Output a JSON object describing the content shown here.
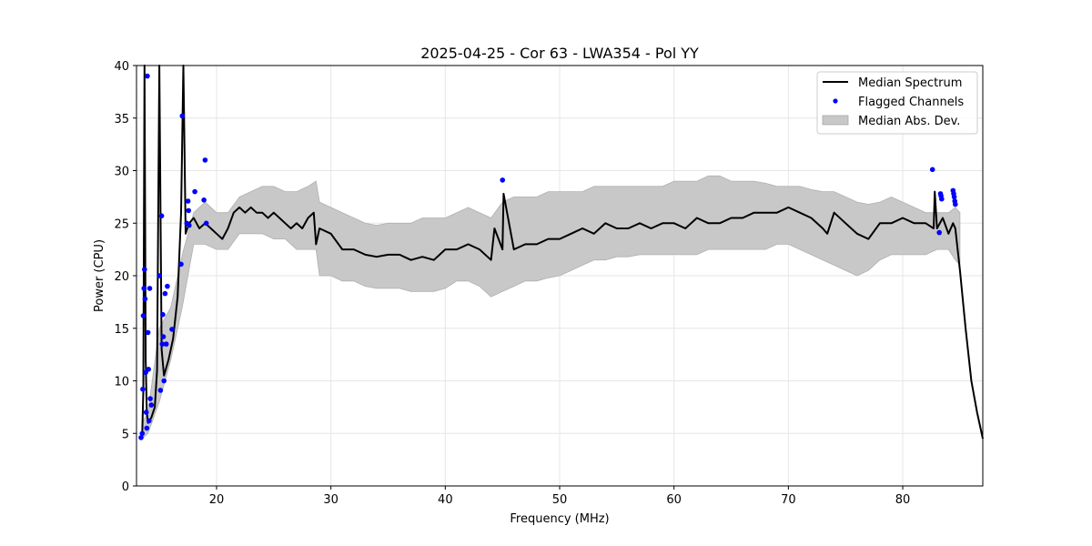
{
  "chart_data": {
    "type": "line",
    "title": "2025-04-25 - Cor 63 - LWA354 - Pol YY",
    "xlabel": "Frequency (MHz)",
    "ylabel": "Power (CPU)",
    "xlim": [
      13,
      87
    ],
    "ylim": [
      0,
      40
    ],
    "xticks": [
      20,
      30,
      40,
      50,
      60,
      70,
      80
    ],
    "yticks": [
      0,
      5,
      10,
      15,
      20,
      25,
      30,
      35,
      40
    ],
    "grid": true,
    "legend_position": "top-right",
    "legend": [
      {
        "label": "Median Spectrum",
        "kind": "line",
        "color": "#000000"
      },
      {
        "label": "Flagged Channels",
        "kind": "marker",
        "color": "#0000ff"
      },
      {
        "label": "Median Abs. Dev.",
        "kind": "patch",
        "color": "#c8c8c8"
      }
    ],
    "series": [
      {
        "name": "Median Spectrum",
        "color": "#000000",
        "x": [
          13.5,
          13.6,
          13.7,
          13.8,
          13.9,
          14.0,
          14.3,
          14.6,
          14.8,
          15.0,
          15.2,
          15.4,
          15.8,
          16.2,
          16.6,
          16.9,
          17.1,
          17.3,
          17.6,
          18.0,
          18.5,
          19.0,
          19.5,
          20.0,
          20.5,
          21.0,
          21.5,
          22.0,
          22.5,
          23.0,
          23.5,
          24.0,
          24.5,
          25.0,
          25.5,
          26.0,
          26.5,
          27.0,
          27.5,
          28.0,
          28.5,
          28.7,
          29.0,
          30.0,
          31.0,
          32.0,
          33.0,
          34.0,
          35.0,
          36.0,
          37.0,
          38.0,
          39.0,
          40.0,
          41.0,
          42.0,
          43.0,
          44.0,
          44.3,
          45.0,
          45.1,
          46.0,
          47.0,
          48.0,
          49.0,
          50.0,
          51.0,
          52.0,
          53.0,
          54.0,
          55.0,
          56.0,
          57.0,
          58.0,
          59.0,
          60.0,
          61.0,
          62.0,
          63.0,
          64.0,
          65.0,
          66.0,
          67.0,
          68.0,
          69.0,
          70.0,
          71.0,
          72.0,
          73.0,
          73.4,
          74.0,
          75.0,
          76.0,
          77.0,
          78.0,
          79.0,
          80.0,
          81.0,
          82.0,
          82.7,
          82.8,
          83.0,
          83.5,
          84.0,
          84.4,
          84.6,
          85.0,
          85.5,
          86.0,
          86.5,
          87.0
        ],
        "y": [
          5.0,
          9.0,
          40.0,
          12.0,
          7.0,
          6.0,
          6.5,
          7.5,
          11.0,
          40.0,
          13.0,
          10.5,
          12.0,
          14.0,
          18.0,
          26.0,
          40.0,
          24.0,
          25.0,
          25.5,
          24.5,
          25.0,
          24.5,
          24.0,
          23.5,
          24.5,
          26.0,
          26.5,
          26.0,
          26.5,
          26.0,
          26.0,
          25.5,
          26.0,
          25.5,
          25.0,
          24.5,
          25.0,
          24.5,
          25.5,
          26.0,
          23.0,
          24.5,
          24.0,
          22.5,
          22.5,
          22.0,
          21.8,
          22.0,
          22.0,
          21.5,
          21.8,
          21.5,
          22.5,
          22.5,
          23.0,
          22.5,
          21.5,
          24.5,
          22.5,
          27.8,
          22.5,
          23.0,
          23.0,
          23.5,
          23.5,
          24.0,
          24.5,
          24.0,
          25.0,
          24.5,
          24.5,
          25.0,
          24.5,
          25.0,
          25.0,
          24.5,
          25.5,
          25.0,
          25.0,
          25.5,
          25.5,
          26.0,
          26.0,
          26.0,
          26.5,
          26.0,
          25.5,
          24.5,
          24.0,
          26.0,
          25.0,
          24.0,
          23.5,
          25.0,
          25.0,
          25.5,
          25.0,
          25.0,
          24.5,
          28.0,
          24.5,
          25.5,
          24.0,
          25.0,
          24.5,
          20.5,
          15.0,
          10.0,
          7.0,
          4.5
        ]
      },
      {
        "name": "Median Abs. Dev.",
        "color": "#c8c8c8",
        "x": [
          13.5,
          14.0,
          15.0,
          16.0,
          17.0,
          18.0,
          19.0,
          20.0,
          21.0,
          22.0,
          23.0,
          24.0,
          25.0,
          26.0,
          27.0,
          28.0,
          28.7,
          29.0,
          30.0,
          31.0,
          32.0,
          33.0,
          34.0,
          35.0,
          36.0,
          37.0,
          38.0,
          39.0,
          40.0,
          41.0,
          42.0,
          43.0,
          44.0,
          45.0,
          46.0,
          47.0,
          48.0,
          49.0,
          50.0,
          51.0,
          52.0,
          53.0,
          54.0,
          55.0,
          56.0,
          57.0,
          58.0,
          59.0,
          60.0,
          61.0,
          62.0,
          63.0,
          64.0,
          65.0,
          66.0,
          67.0,
          68.0,
          69.0,
          70.0,
          71.0,
          72.0,
          73.0,
          74.0,
          75.0,
          76.0,
          77.0,
          78.0,
          79.0,
          80.0,
          81.0,
          82.0,
          83.0,
          84.0,
          84.6,
          85.0
        ],
        "upper": [
          6.0,
          7.0,
          15.0,
          17.0,
          22.0,
          26.0,
          27.0,
          26.0,
          26.0,
          27.5,
          28.0,
          28.5,
          28.5,
          28.0,
          28.0,
          28.5,
          29.0,
          27.0,
          26.5,
          26.0,
          25.5,
          25.0,
          24.8,
          25.0,
          25.0,
          25.0,
          25.5,
          25.5,
          25.5,
          26.0,
          26.5,
          26.0,
          25.5,
          27.0,
          27.5,
          27.5,
          27.5,
          28.0,
          28.0,
          28.0,
          28.0,
          28.5,
          28.5,
          28.5,
          28.5,
          28.5,
          28.5,
          28.5,
          29.0,
          29.0,
          29.0,
          29.5,
          29.5,
          29.0,
          29.0,
          29.0,
          28.8,
          28.5,
          28.5,
          28.5,
          28.2,
          28.0,
          28.0,
          27.5,
          27.0,
          26.8,
          27.0,
          27.5,
          27.0,
          26.5,
          26.0,
          26.0,
          26.0,
          26.5,
          26.0
        ],
        "lower": [
          4.5,
          5.0,
          8.0,
          12.0,
          17.0,
          23.0,
          23.0,
          22.5,
          22.5,
          24.0,
          24.0,
          24.0,
          23.5,
          23.5,
          22.5,
          22.5,
          22.5,
          20.0,
          20.0,
          19.5,
          19.5,
          19.0,
          18.8,
          18.8,
          18.8,
          18.5,
          18.5,
          18.5,
          18.8,
          19.5,
          19.5,
          19.0,
          18.0,
          18.5,
          19.0,
          19.5,
          19.5,
          19.8,
          20.0,
          20.5,
          21.0,
          21.5,
          21.5,
          21.8,
          21.8,
          22.0,
          22.0,
          22.0,
          22.0,
          22.0,
          22.0,
          22.5,
          22.5,
          22.5,
          22.5,
          22.5,
          22.5,
          23.0,
          23.0,
          22.5,
          22.0,
          21.5,
          21.0,
          20.5,
          20.0,
          20.5,
          21.5,
          22.0,
          22.0,
          22.0,
          22.0,
          22.5,
          22.5,
          21.5,
          21.0
        ]
      },
      {
        "name": "Flagged Channels",
        "color": "#0000ff",
        "x": [
          13.4,
          13.5,
          13.55,
          13.6,
          13.65,
          13.7,
          13.75,
          13.8,
          13.85,
          13.9,
          13.95,
          14.0,
          14.05,
          14.1,
          14.15,
          14.2,
          14.3,
          15.0,
          15.1,
          15.2,
          15.25,
          15.3,
          15.35,
          15.4,
          15.5,
          15.6,
          15.7,
          16.1,
          16.9,
          17.0,
          17.4,
          17.5,
          17.55,
          17.6,
          18.1,
          18.9,
          19.0,
          19.1,
          45.0,
          82.6,
          83.2,
          83.3,
          83.35,
          83.4,
          84.4,
          84.45,
          84.5,
          84.55,
          84.6
        ],
        "y": [
          4.6,
          5.0,
          9.2,
          16.2,
          18.8,
          20.6,
          17.8,
          10.8,
          7.0,
          5.5,
          39.0,
          14.6,
          11.1,
          6.2,
          18.8,
          8.3,
          7.7,
          20.0,
          9.1,
          25.7,
          13.5,
          16.3,
          14.2,
          10.0,
          18.3,
          13.5,
          19.0,
          14.9,
          21.1,
          35.2,
          25.0,
          27.1,
          26.2,
          24.8,
          28.0,
          27.2,
          31.0,
          25.0,
          29.1,
          30.1,
          24.1,
          27.8,
          27.6,
          27.3,
          28.1,
          27.8,
          27.5,
          27.1,
          26.8
        ]
      }
    ]
  }
}
